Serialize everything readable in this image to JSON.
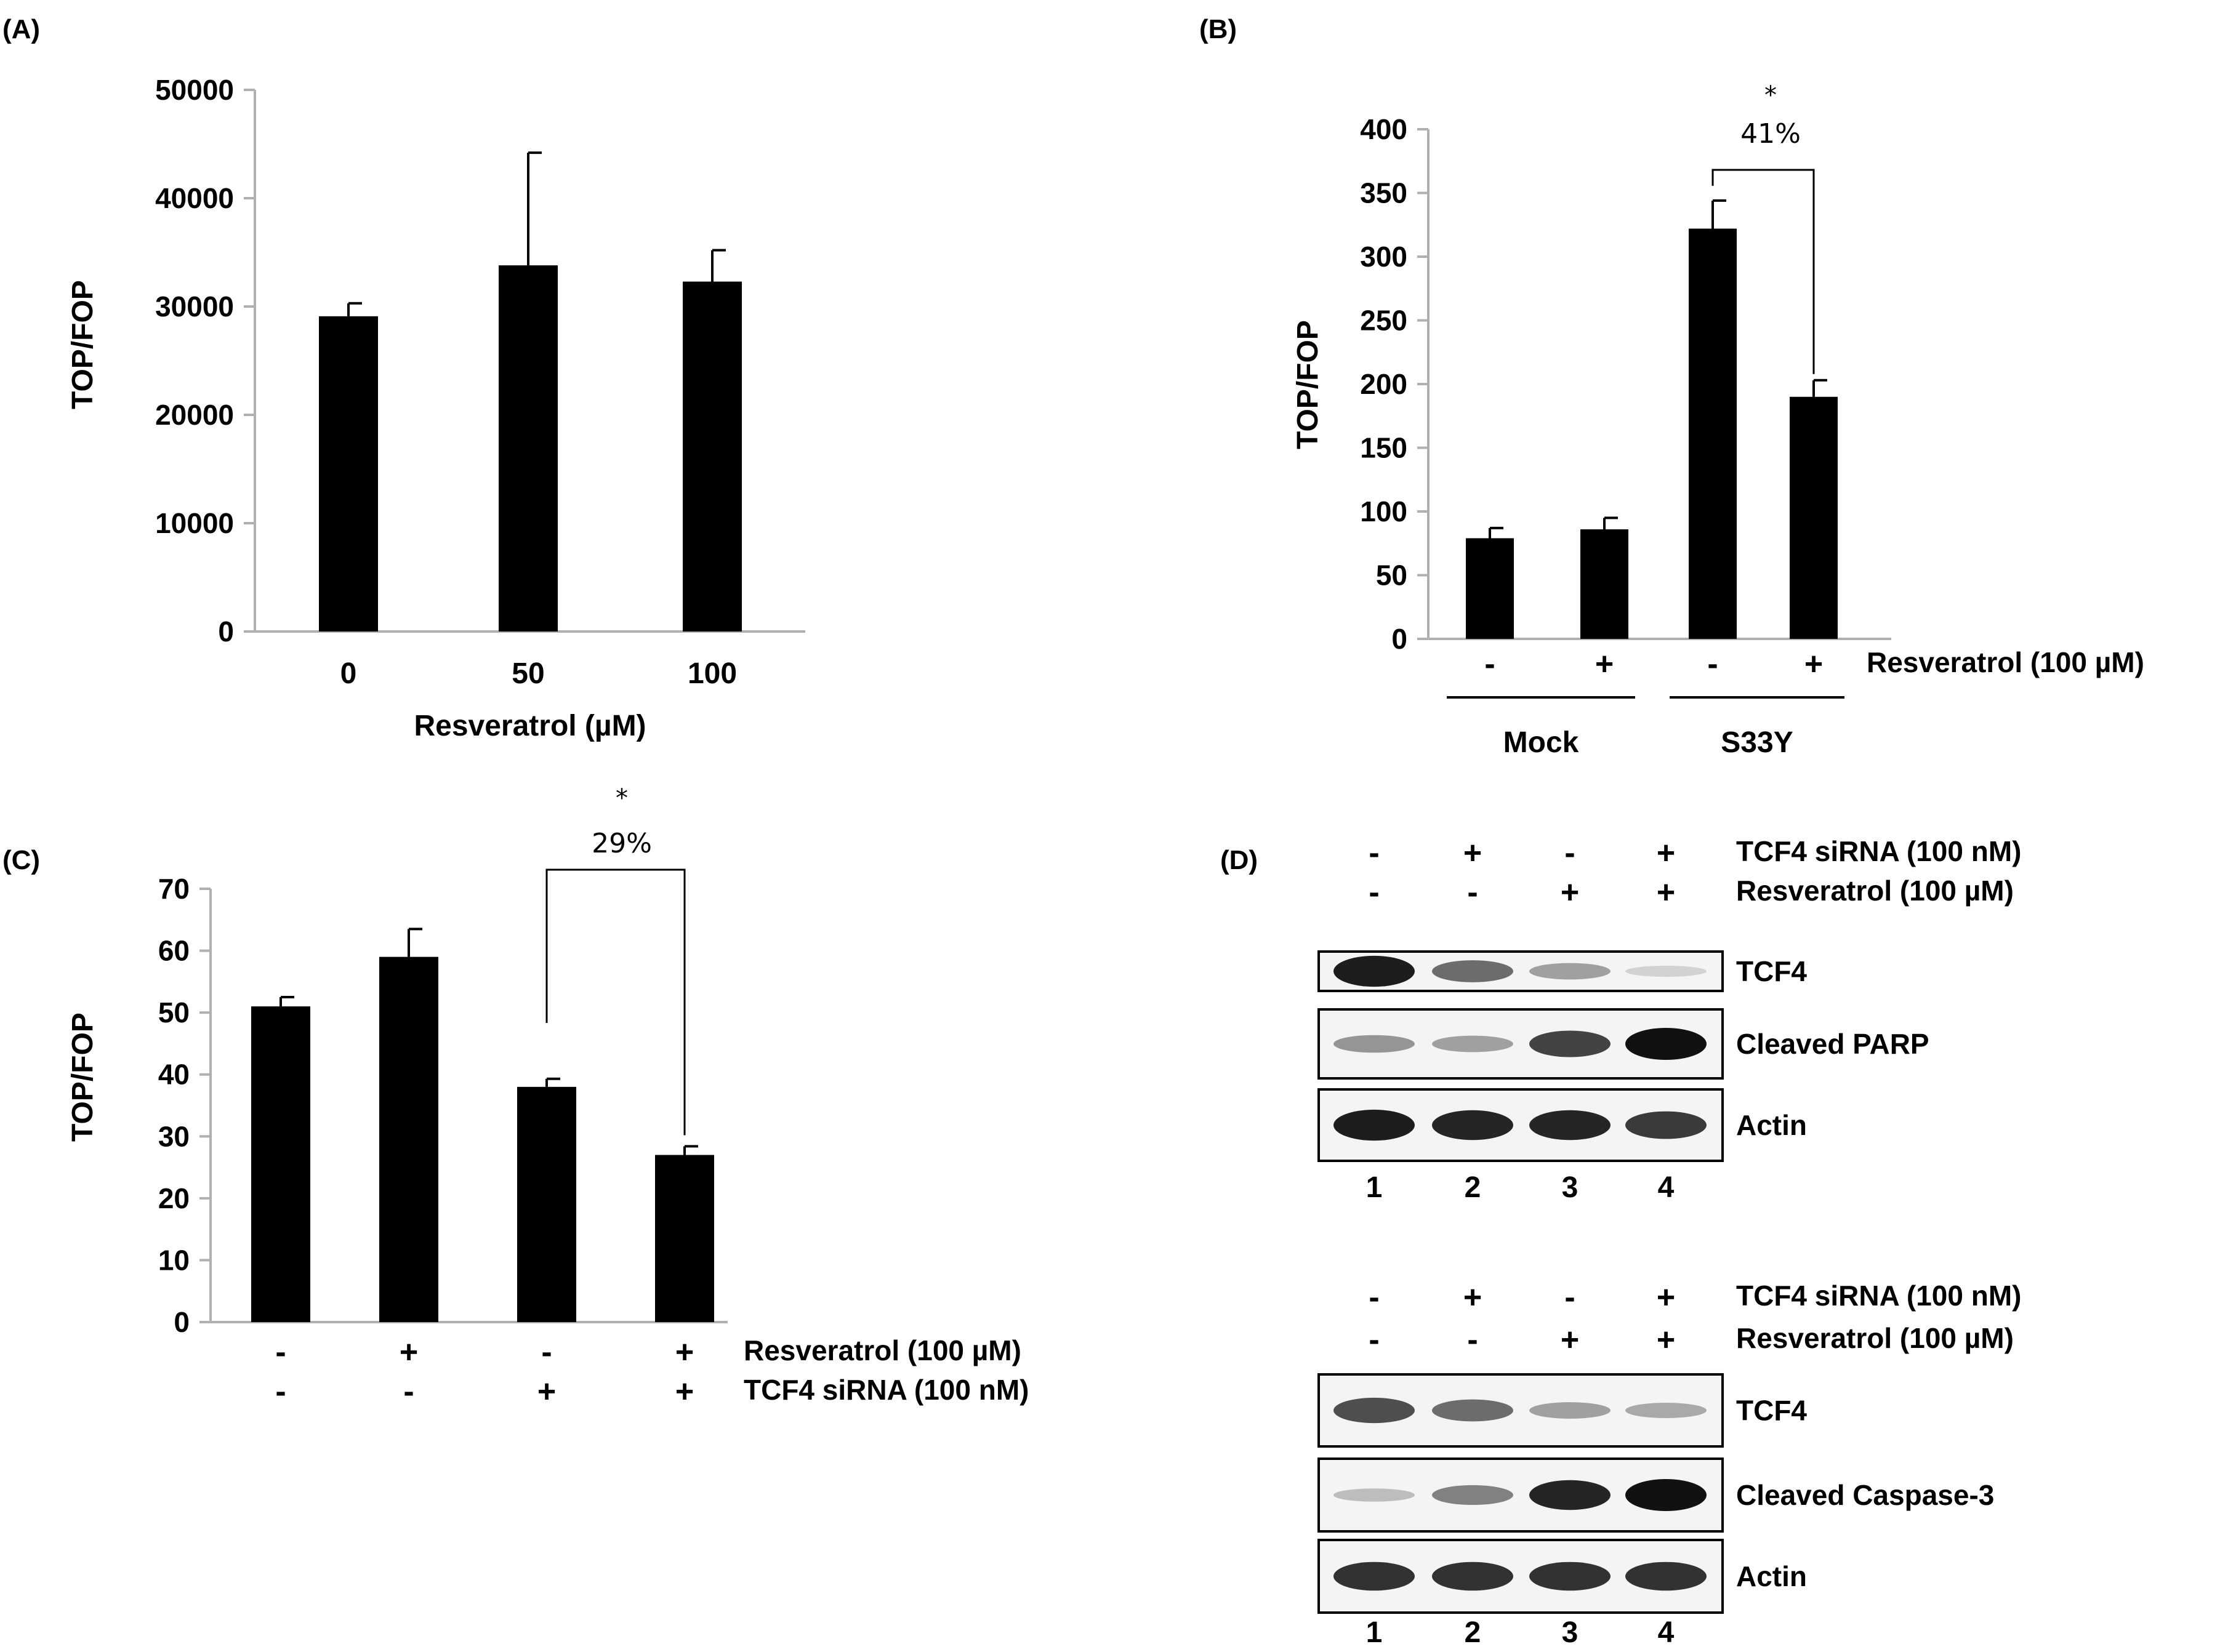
{
  "panel_labels": {
    "a": "(A)",
    "b": "(B)",
    "c": "(C)",
    "d": "(D)"
  },
  "chart_data": [
    {
      "id": "A",
      "type": "bar",
      "categories": [
        "0",
        "50",
        "100"
      ],
      "values": [
        29100,
        33800,
        32300
      ],
      "errors": [
        1200,
        10400,
        2900
      ],
      "ylabel": "TOP/FOP",
      "xlabel": "Resveratrol (µM)",
      "ylim": [
        0,
        50000
      ],
      "yticks": [
        0,
        10000,
        20000,
        30000,
        40000,
        50000
      ],
      "grid": false,
      "legend": "none",
      "bar_color": "#000000"
    },
    {
      "id": "B",
      "type": "bar",
      "categories": [
        "-",
        "+",
        "-",
        "+"
      ],
      "values": [
        79,
        86,
        322,
        190
      ],
      "errors": [
        8,
        9,
        22,
        13
      ],
      "ylabel": "TOP/FOP",
      "ylim": [
        0,
        400
      ],
      "yticks": [
        0,
        50,
        100,
        150,
        200,
        250,
        300,
        350,
        400
      ],
      "row_label": "Resveratrol (100 µM)",
      "groups": [
        {
          "label": "Mock",
          "bars": [
            0,
            1
          ]
        },
        {
          "label": "S33Y",
          "bars": [
            2,
            3
          ]
        }
      ],
      "annotation": {
        "bars": [
          2,
          3
        ],
        "star": "*",
        "text": "41%"
      },
      "grid": false,
      "legend": "none",
      "bar_color": "#000000"
    },
    {
      "id": "C",
      "type": "bar",
      "values": [
        51,
        59,
        38,
        27
      ],
      "errors": [
        1.5,
        4.5,
        1.3,
        1.4
      ],
      "ylabel": "TOP/FOP",
      "ylim": [
        0,
        70
      ],
      "yticks": [
        0,
        10,
        20,
        30,
        40,
        50,
        60,
        70
      ],
      "rows": [
        {
          "label": "Resveratrol (100 µM)",
          "signs": [
            "-",
            "+",
            "-",
            "+"
          ]
        },
        {
          "label": "TCF4 siRNA (100 nM)",
          "signs": [
            "-",
            "-",
            "+",
            "+"
          ]
        }
      ],
      "annotation": {
        "bars": [
          2,
          3
        ],
        "star": "*",
        "text": "29%"
      },
      "grid": false,
      "legend": "none",
      "bar_color": "#000000"
    }
  ],
  "western_blots": [
    {
      "id": "D-top",
      "conditions": [
        {
          "label": "TCF4 siRNA (100 nM)",
          "signs": [
            "-",
            "+",
            "-",
            "+"
          ]
        },
        {
          "label": "Resveratrol (100 µM)",
          "signs": [
            "-",
            "-",
            "+",
            "+"
          ]
        }
      ],
      "bands": [
        {
          "label": "TCF4",
          "intensity": [
            0.95,
            0.55,
            0.3,
            0.06
          ]
        },
        {
          "label": "Cleaved PARP",
          "intensity": [
            0.35,
            0.3,
            0.75,
            1.0
          ]
        },
        {
          "label": "Actin",
          "intensity": [
            0.95,
            0.9,
            0.9,
            0.8
          ]
        }
      ],
      "lanes": [
        "1",
        "2",
        "3",
        "4"
      ]
    },
    {
      "id": "D-bottom",
      "conditions": [
        {
          "label": "TCF4 siRNA (100 nM)",
          "signs": [
            "-",
            "+",
            "-",
            "+"
          ]
        },
        {
          "label": "Resveratrol (100 µM)",
          "signs": [
            "-",
            "-",
            "+",
            "+"
          ]
        }
      ],
      "bands": [
        {
          "label": "TCF4",
          "intensity": [
            0.7,
            0.55,
            0.3,
            0.25
          ]
        },
        {
          "label": "Cleaved Caspase-3",
          "intensity": [
            0.15,
            0.45,
            0.9,
            1.0
          ]
        },
        {
          "label": "Actin",
          "intensity": [
            0.85,
            0.85,
            0.85,
            0.85
          ]
        }
      ],
      "lanes": [
        "1",
        "2",
        "3",
        "4"
      ]
    }
  ]
}
